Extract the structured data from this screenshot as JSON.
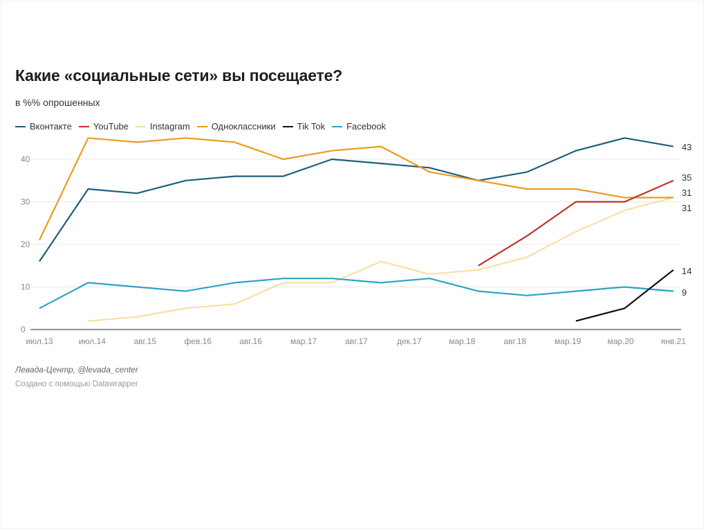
{
  "header": {
    "title": "Какие «социальные сети» вы посещаете?",
    "subtitle": "в %% опрошенных"
  },
  "footer": {
    "source": "Левада-Центр, @levada_center",
    "credit": "Создано с помощью Datawrapper"
  },
  "chart_data": {
    "type": "line",
    "title": "Какие «социальные сети» вы посещаете?",
    "subtitle": "в %% опрошенных",
    "xlabel": "",
    "ylabel": "",
    "ylim": [
      0,
      45
    ],
    "yticks": [
      0,
      10,
      20,
      30,
      40
    ],
    "grid": true,
    "legend_position": "top-left",
    "x_tick_labels": [
      "июл.13",
      "июл.14",
      "авг.15",
      "фев.16",
      "авг.16",
      "мар.17",
      "авг.17",
      "дек.17",
      "мар.18",
      "авг.18",
      "мар.19",
      "мар.20",
      "янв.21"
    ],
    "points_count": 14,
    "series": [
      {
        "name": "Вконтакте",
        "color": "#1f5f7a",
        "values": [
          16,
          33,
          32,
          35,
          36,
          36,
          40,
          39,
          38,
          35,
          37,
          42,
          45,
          43
        ],
        "end_label": "43"
      },
      {
        "name": "YouTube",
        "color": "#c4302b",
        "values": [
          null,
          null,
          null,
          null,
          null,
          null,
          null,
          null,
          null,
          15,
          22,
          30,
          30,
          35
        ],
        "end_label": "35"
      },
      {
        "name": "Instagram",
        "color": "#f7dea0",
        "values": [
          null,
          2,
          3,
          5,
          6,
          11,
          11,
          16,
          13,
          14,
          17,
          23,
          28,
          31
        ],
        "end_label": "31"
      },
      {
        "name": "Одноклассники",
        "color": "#ee9a1f",
        "values": [
          21,
          45,
          44,
          45,
          44,
          40,
          42,
          43,
          37,
          35,
          33,
          33,
          31,
          31
        ],
        "end_label": "31"
      },
      {
        "name": "Tik Tok",
        "color": "#111111",
        "values": [
          null,
          null,
          null,
          null,
          null,
          null,
          null,
          null,
          null,
          null,
          null,
          2,
          5,
          14
        ],
        "end_label": "14"
      },
      {
        "name": "Facebook",
        "color": "#2ea3c4",
        "values": [
          5,
          11,
          10,
          9,
          11,
          12,
          12,
          11,
          12,
          9,
          8,
          9,
          10,
          9
        ],
        "end_label": "9"
      }
    ]
  }
}
